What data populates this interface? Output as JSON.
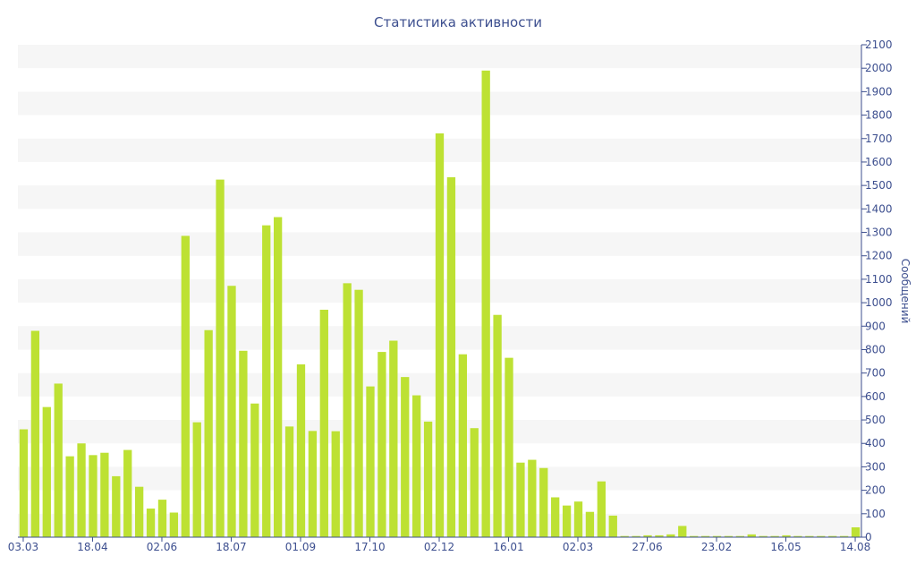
{
  "chart_data": {
    "type": "bar",
    "title": "Статистика активности",
    "ylabel": "Сообщений",
    "xlabel": "",
    "ylim": [
      0,
      2100
    ],
    "y_ticks": [
      0,
      100,
      200,
      300,
      400,
      500,
      600,
      700,
      800,
      900,
      1000,
      1100,
      1200,
      1300,
      1400,
      1500,
      1600,
      1700,
      1800,
      1900,
      2000,
      2100
    ],
    "x_tick_labels": [
      {
        "index": 0,
        "label": "03.03"
      },
      {
        "index": 6,
        "label": "18.04"
      },
      {
        "index": 12,
        "label": "02.06"
      },
      {
        "index": 18,
        "label": "18.07"
      },
      {
        "index": 24,
        "label": "01.09"
      },
      {
        "index": 30,
        "label": "17.10"
      },
      {
        "index": 36,
        "label": "02.12"
      },
      {
        "index": 42,
        "label": "16.01"
      },
      {
        "index": 48,
        "label": "02.03"
      },
      {
        "index": 54,
        "label": "27.06"
      },
      {
        "index": 60,
        "label": "23.02"
      },
      {
        "index": 66,
        "label": "16.05"
      },
      {
        "index": 72,
        "label": "14.08"
      }
    ],
    "values": [
      460,
      880,
      555,
      655,
      345,
      400,
      350,
      360,
      260,
      372,
      215,
      122,
      160,
      105,
      1285,
      490,
      883,
      1525,
      1072,
      795,
      570,
      1330,
      1365,
      472,
      737,
      453,
      970,
      452,
      1083,
      1055,
      643,
      790,
      838,
      683,
      605,
      493,
      1722,
      1535,
      780,
      465,
      1990,
      948,
      765,
      318,
      330,
      295,
      170,
      135,
      152,
      108,
      238,
      92,
      5,
      5,
      8,
      8,
      12,
      48,
      5,
      5,
      5,
      5,
      5,
      12,
      5,
      5,
      8,
      5,
      5,
      5,
      5,
      5,
      42
    ]
  }
}
